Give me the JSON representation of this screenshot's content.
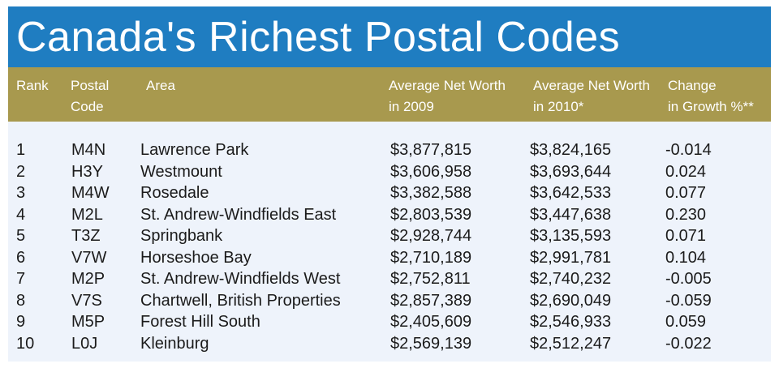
{
  "title": "Canada's Richest Postal Codes",
  "chart_data": {
    "type": "table",
    "columns": [
      "Rank",
      "Postal\nCode",
      "Area",
      "Average Net Worth\nin 2009",
      "Average Net Worth\nin 2010*",
      "Change\nin Growth %**"
    ],
    "rows": [
      [
        "1",
        "M4N",
        "Lawrence Park",
        "$3,877,815",
        "$3,824,165",
        "-0.014"
      ],
      [
        "2",
        "H3Y",
        "Westmount",
        "$3,606,958",
        "$3,693,644",
        "0.024"
      ],
      [
        "3",
        "M4W",
        "Rosedale",
        "$3,382,588",
        "$3,642,533",
        "0.077"
      ],
      [
        "4",
        "M2L",
        "St. Andrew-Windfields East",
        "$2,803,539",
        "$3,447,638",
        "0.230"
      ],
      [
        "5",
        "T3Z",
        "Springbank",
        "$2,928,744",
        "$3,135,593",
        "0.071"
      ],
      [
        "6",
        "V7W",
        "Horseshoe Bay",
        "$2,710,189",
        "$2,991,781",
        "0.104"
      ],
      [
        "7",
        "M2P",
        "St. Andrew-Windfields West",
        "$2,752,811",
        "$2,740,232",
        "-0.005"
      ],
      [
        "8",
        "V7S",
        "Chartwell, British Properties",
        "$2,857,389",
        "$2,690,049",
        "-0.059"
      ],
      [
        "9",
        "M5P",
        "Forest Hill South",
        "$2,405,609",
        "$2,546,933",
        "0.059"
      ],
      [
        "10",
        "L0J",
        "Kleinburg",
        "$2,569,139",
        "$2,512,247",
        "-0.022"
      ]
    ]
  },
  "colors": {
    "title_bar": "#1f7dc1",
    "header_bar": "#a8994e",
    "table_background": "#eef3fb",
    "text": "#1b1b1b"
  }
}
